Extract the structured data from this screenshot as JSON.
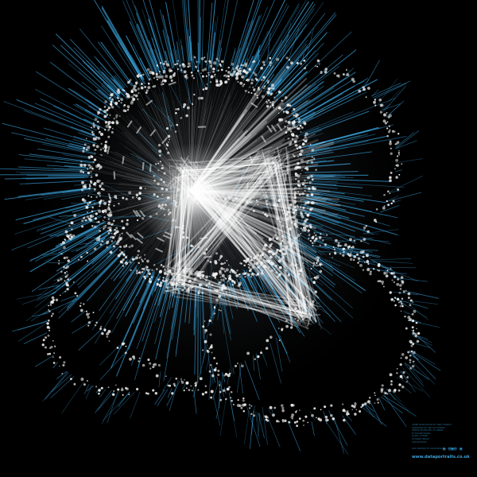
{
  "colors": {
    "background": "#000000",
    "node": "#f2f2f2",
    "edge": "#ffffff",
    "spike": "#3ba6e0",
    "caption": "#2a6b8c",
    "site": "#3d9fd8"
  },
  "caption": {
    "lines": [
      "LOREM IPSUM DOLOR SIT AMET CONSECT",
      "ADIPISCING ELIT SED DO EIUSMOD",
      "TEMPOR INCIDIDUNT UT LABORE",
      "ET DOLORE MAGNA",
      "ALIQUA UT ENIM",
      "AD MINIM VENIAM",
      "QUIS NOSTRUD"
    ],
    "logo": "▣ ▤▣▤ ▣",
    "credit": "DATA PORTRAIT BY DATAPORTRAITS",
    "site": "www.dataportraits.co.uk"
  }
}
